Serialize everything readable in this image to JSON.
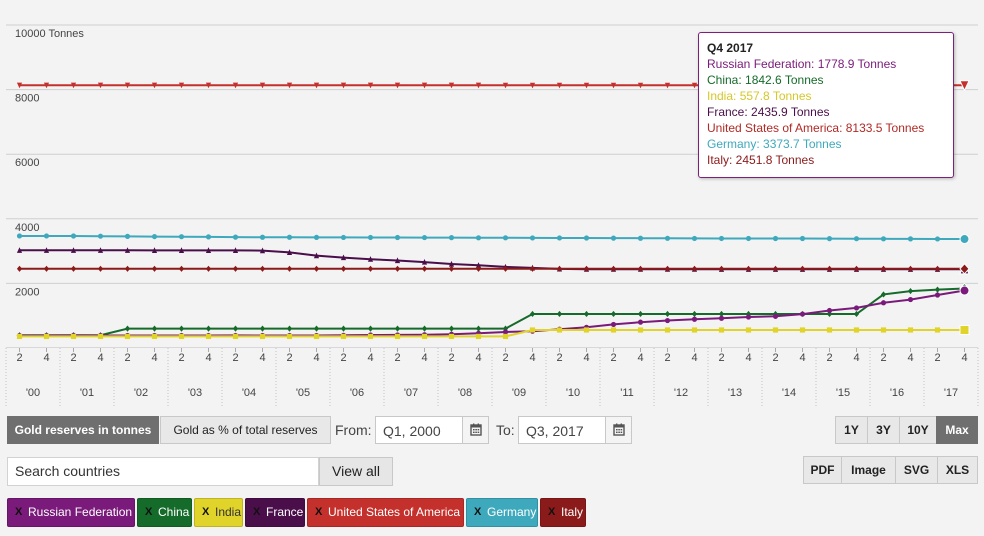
{
  "chart_data": {
    "type": "line",
    "unit": "Tonnes",
    "y_axis": {
      "min": 0,
      "max": 10000,
      "ticks": [
        10000,
        8000,
        6000,
        4000,
        2000
      ],
      "tick_labels": [
        "10000 Tonnes",
        "8000",
        "6000",
        "4000",
        "2000"
      ]
    },
    "x_axis": {
      "quarter_labels": [
        "2",
        "4",
        "2",
        "4",
        "2",
        "4",
        "2",
        "4",
        "2",
        "4",
        "2",
        "4",
        "2",
        "4",
        "2",
        "4",
        "2",
        "4",
        "2",
        "4",
        "2",
        "4",
        "2",
        "4",
        "2",
        "4",
        "2",
        "4",
        "2",
        "4",
        "2",
        "4",
        "2",
        "4",
        "2",
        "4"
      ],
      "year_labels": [
        "'00",
        "'01",
        "'02",
        "'03",
        "'04",
        "'05",
        "'06",
        "'07",
        "'08",
        "'09",
        "'10",
        "'11",
        "'12",
        "'13",
        "'14",
        "'15",
        "'16",
        "'17"
      ]
    },
    "series": [
      {
        "name": "United States of America",
        "color": "#c4302b",
        "marker": "triangle-down",
        "values": [
          8137,
          8137,
          8137,
          8136,
          8136,
          8136,
          8136,
          8136,
          8135,
          8135,
          8135,
          8135,
          8135,
          8134,
          8134,
          8134,
          8134,
          8134,
          8133,
          8133,
          8133,
          8133,
          8133,
          8133,
          8133,
          8133,
          8133,
          8133,
          8133,
          8133,
          8133,
          8133,
          8133,
          8133,
          8133,
          8133
        ]
      },
      {
        "name": "Germany",
        "color": "#3ea9bd",
        "marker": "circle",
        "values": [
          3469,
          3469,
          3467,
          3462,
          3456,
          3449,
          3446,
          3440,
          3433,
          3428,
          3428,
          3425,
          3423,
          3422,
          3421,
          3419,
          3417,
          3412,
          3412,
          3408,
          3407,
          3406,
          3401,
          3398,
          3396,
          3392,
          3391,
          3391,
          3390,
          3390,
          3386,
          3384,
          3381,
          3379,
          3376,
          3374
        ]
      },
      {
        "name": "France",
        "color": "#4a0f4a",
        "marker": "triangle",
        "values": [
          3025,
          3024,
          3024,
          3024,
          3024,
          3023,
          3023,
          3022,
          3022,
          3015,
          2960,
          2860,
          2800,
          2750,
          2710,
          2660,
          2600,
          2560,
          2510,
          2480,
          2450,
          2440,
          2440,
          2440,
          2440,
          2440,
          2436,
          2436,
          2436,
          2436,
          2436,
          2436,
          2436,
          2436,
          2436,
          2436
        ]
      },
      {
        "name": "Italy",
        "color": "#8b1a1a",
        "marker": "diamond",
        "values": [
          2452,
          2452,
          2452,
          2452,
          2452,
          2452,
          2452,
          2452,
          2452,
          2452,
          2452,
          2452,
          2452,
          2452,
          2452,
          2452,
          2452,
          2452,
          2452,
          2452,
          2452,
          2452,
          2452,
          2452,
          2452,
          2452,
          2452,
          2452,
          2452,
          2452,
          2452,
          2452,
          2452,
          2452,
          2452,
          2452
        ]
      },
      {
        "name": "China",
        "color": "#156b2a",
        "marker": "diamond",
        "values": [
          395,
          395,
          395,
          395,
          600,
          600,
          600,
          600,
          600,
          600,
          600,
          600,
          600,
          600,
          600,
          600,
          600,
          600,
          600,
          1054,
          1054,
          1054,
          1054,
          1054,
          1054,
          1054,
          1054,
          1054,
          1054,
          1054,
          1054,
          1054,
          1658,
          1762,
          1808,
          1843
        ]
      },
      {
        "name": "Russian Federation",
        "color": "#7a1a7a",
        "marker": "circle",
        "values": [
          384,
          388,
          390,
          388,
          386,
          387,
          388,
          386,
          389,
          387,
          388,
          387,
          392,
          402,
          405,
          410,
          425,
          455,
          495,
          520,
          580,
          640,
          730,
          800,
          850,
          890,
          920,
          960,
          980,
          1050,
          1160,
          1240,
          1400,
          1500,
          1640,
          1779
        ]
      },
      {
        "name": "India",
        "color": "#e0d32a",
        "marker": "square",
        "values": [
          358,
          358,
          358,
          358,
          358,
          358,
          358,
          358,
          358,
          358,
          358,
          358,
          358,
          358,
          358,
          358,
          358,
          358,
          358,
          558,
          558,
          558,
          558,
          558,
          558,
          558,
          558,
          558,
          558,
          558,
          558,
          558,
          558,
          558,
          558,
          558
        ]
      }
    ]
  },
  "tooltip": {
    "title": "Q4 2017",
    "lines": [
      {
        "text": "Russian Federation: 1778.9 Tonnes",
        "color": "#7a1a7a"
      },
      {
        "text": "China: 1842.6 Tonnes",
        "color": "#156b2a"
      },
      {
        "text": "India: 557.8 Tonnes",
        "color": "#d6c72a"
      },
      {
        "text": "France: 2435.9 Tonnes",
        "color": "#4a0f4a"
      },
      {
        "text": "United States of America: 8133.5 Tonnes",
        "color": "#b02a26"
      },
      {
        "text": "Germany: 3373.7 Tonnes",
        "color": "#3ea9bd"
      },
      {
        "text": "Italy: 2451.8 Tonnes",
        "color": "#8b1a1a"
      }
    ]
  },
  "controls": {
    "toggle_tonnes": "Gold reserves in tonnes",
    "toggle_percent": "Gold as % of total reserves",
    "from_label": "From:",
    "from_value": "Q1, 2000",
    "to_label": "To:",
    "to_value": "Q3, 2017",
    "range_buttons": [
      "1Y",
      "3Y",
      "10Y",
      "Max"
    ],
    "search_placeholder": "Search countries",
    "view_all": "View all",
    "export_buttons": [
      "PDF",
      "Image",
      "SVG",
      "XLS"
    ]
  },
  "chips": [
    {
      "label": "Russian Federation",
      "color": "#7a1a7a",
      "x": "X"
    },
    {
      "label": "China",
      "color": "#156b2a",
      "x": "X"
    },
    {
      "label": "India",
      "color": "#e0d32a",
      "x": "X"
    },
    {
      "label": "France",
      "color": "#4a0f4a",
      "x": "X"
    },
    {
      "label": "United States of America",
      "color": "#c4302b",
      "x": "X"
    },
    {
      "label": "Germany",
      "color": "#3ea9bd",
      "x": "X"
    },
    {
      "label": "Italy",
      "color": "#8b1a1a",
      "x": "X"
    }
  ]
}
